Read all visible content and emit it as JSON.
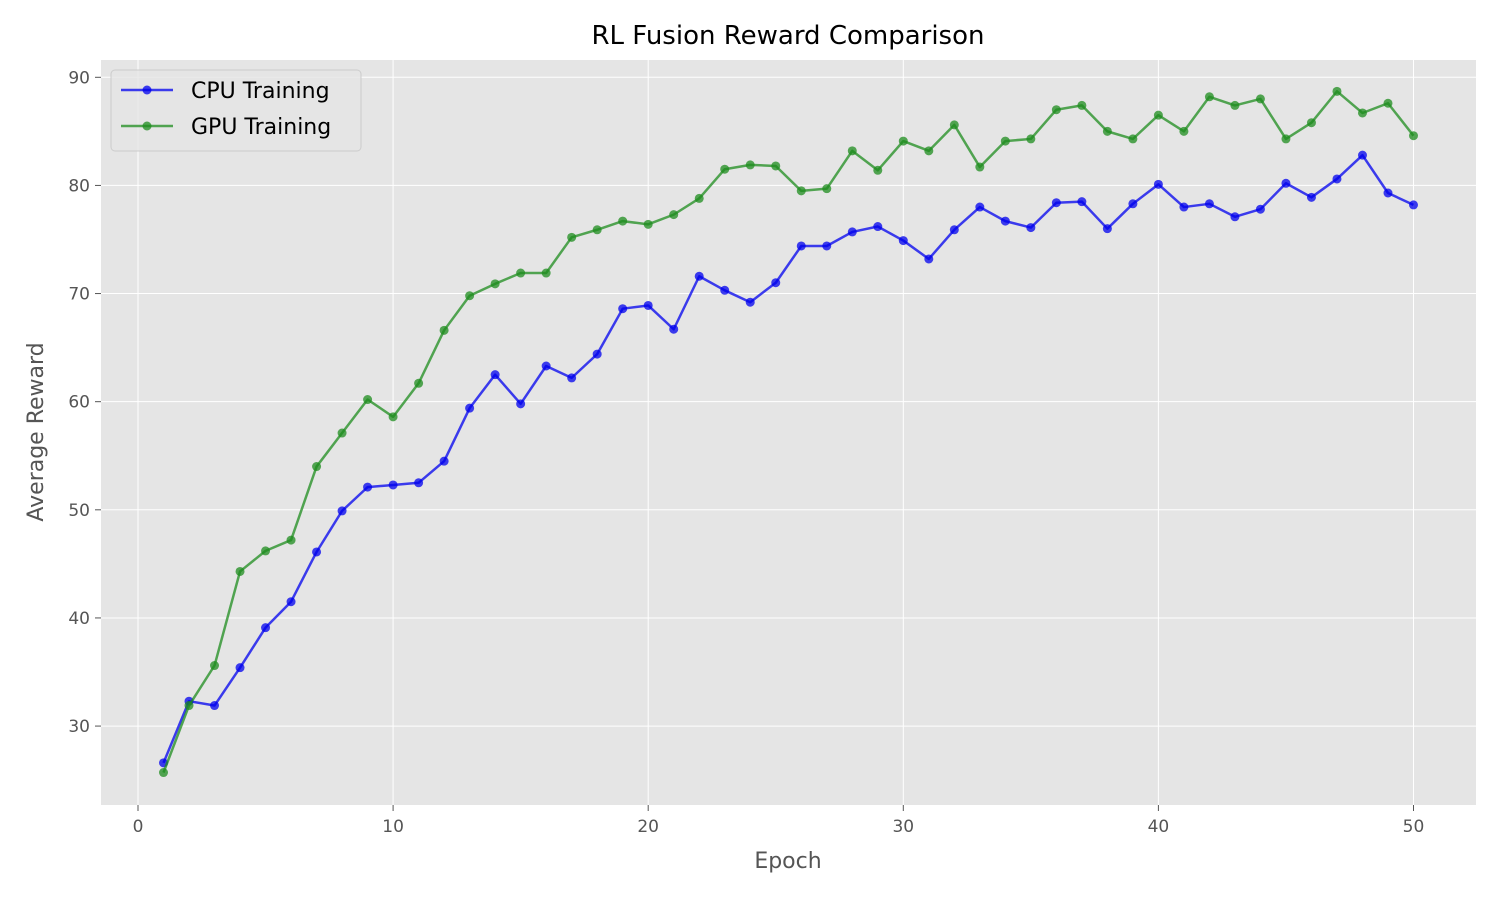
{
  "chart_data": {
    "type": "line",
    "title": "RL Fusion Reward Comparison",
    "xlabel": "Epoch",
    "ylabel": "Average Reward",
    "xlim": [
      -1.45,
      52.45
    ],
    "ylim": [
      22.7,
      91.6
    ],
    "xticks": [
      0,
      10,
      20,
      30,
      40,
      50
    ],
    "yticks": [
      30,
      40,
      50,
      60,
      70,
      80,
      90
    ],
    "grid": true,
    "legend_position": "top-left",
    "x": [
      1,
      2,
      3,
      4,
      5,
      6,
      7,
      8,
      9,
      10,
      11,
      12,
      13,
      14,
      15,
      16,
      17,
      18,
      19,
      20,
      21,
      22,
      23,
      24,
      25,
      26,
      27,
      28,
      29,
      30,
      31,
      32,
      33,
      34,
      35,
      36,
      37,
      38,
      39,
      40,
      41,
      42,
      43,
      44,
      45,
      46,
      47,
      48,
      49,
      50
    ],
    "series": [
      {
        "name": "CPU Training",
        "color": "#0000ee",
        "values": [
          26.6,
          32.3,
          31.9,
          35.4,
          39.1,
          41.5,
          46.1,
          49.9,
          52.1,
          52.3,
          52.5,
          54.5,
          59.4,
          62.5,
          59.8,
          63.3,
          62.2,
          64.4,
          68.6,
          68.9,
          66.7,
          71.6,
          70.3,
          69.2,
          71.0,
          74.4,
          74.4,
          75.7,
          76.2,
          74.9,
          73.2,
          75.9,
          78.0,
          76.7,
          76.1,
          78.4,
          78.5,
          76.0,
          78.3,
          80.1,
          78.0,
          78.3,
          77.1,
          77.8,
          80.2,
          78.9,
          80.6,
          82.8,
          79.3,
          78.2
        ]
      },
      {
        "name": "GPU Training",
        "color": "#1e8c1e",
        "values": [
          25.7,
          31.9,
          35.6,
          44.3,
          46.2,
          47.2,
          54.0,
          57.1,
          60.2,
          58.6,
          61.7,
          66.6,
          69.8,
          70.9,
          71.9,
          71.9,
          75.2,
          75.9,
          76.7,
          76.4,
          77.3,
          78.8,
          81.5,
          81.9,
          81.8,
          79.5,
          79.7,
          83.2,
          81.4,
          84.1,
          83.2,
          85.6,
          81.7,
          84.1,
          84.3,
          87.0,
          87.4,
          85.0,
          84.3,
          86.5,
          85.0,
          88.2,
          87.4,
          88.0,
          84.3,
          85.8,
          88.7,
          86.7,
          87.6,
          84.6
        ]
      }
    ]
  }
}
